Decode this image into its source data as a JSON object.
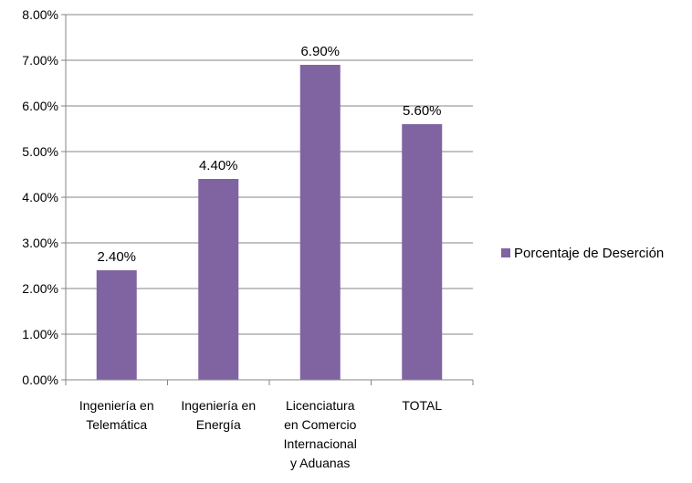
{
  "chart_data": {
    "type": "bar",
    "categories": [
      [
        "Ingeniería en",
        "Telemática"
      ],
      [
        "Ingeniería en",
        "Energía"
      ],
      [
        "Licenciatura",
        "en Comercio",
        "Internacional",
        "y Aduanas"
      ],
      [
        "TOTAL"
      ]
    ],
    "series": [
      {
        "name": "Porcentaje de Deserción",
        "values": [
          2.4,
          4.4,
          6.9,
          5.6
        ],
        "data_labels": [
          "2.40%",
          "4.40%",
          "6.90%",
          "5.60%"
        ],
        "color": "#8064A2"
      }
    ],
    "ylim": [
      0,
      8
    ],
    "yticks": [
      0,
      1,
      2,
      3,
      4,
      5,
      6,
      7,
      8
    ],
    "ytick_labels": [
      "0.00%",
      "1.00%",
      "2.00%",
      "3.00%",
      "4.00%",
      "5.00%",
      "6.00%",
      "7.00%",
      "8.00%"
    ],
    "grid": true,
    "legend": "right"
  }
}
